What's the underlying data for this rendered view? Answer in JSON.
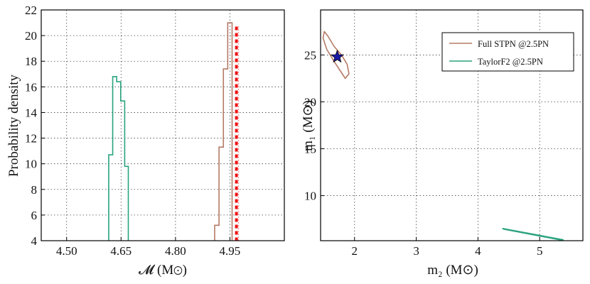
{
  "colors": {
    "full_stpn": "#b57a66",
    "taylorf2": "#2aa37f",
    "truth": "#ee1111",
    "star": "#1a1aa8"
  },
  "chart_data": [
    {
      "type": "histogram",
      "xlabel": "𝓜 (M⊙)",
      "ylabel": "Probability density",
      "xlim": [
        4.43,
        5.1
      ],
      "ylim": [
        4,
        22
      ],
      "xticks": [
        4.5,
        4.65,
        4.8,
        4.95
      ],
      "xtick_labels": [
        "4.50",
        "4.65",
        "4.80",
        "4.95"
      ],
      "yticks": [
        4,
        6,
        8,
        10,
        12,
        14,
        16,
        18,
        20,
        22
      ],
      "ytick_labels": [
        "4",
        "6",
        "8",
        "10",
        "12",
        "14",
        "16",
        "18",
        "20",
        "22"
      ],
      "grid": true,
      "series": [
        {
          "key": "taylorf2",
          "edges": [
            4.616,
            4.627,
            4.638,
            4.649,
            4.66,
            4.67
          ],
          "values": [
            10.7,
            16.8,
            16.4,
            14.9,
            9.8
          ]
        },
        {
          "key": "full_stpn",
          "edges": [
            4.908,
            4.92,
            4.932,
            4.944,
            4.956
          ],
          "values": [
            5.2,
            11.3,
            17.4,
            21.0
          ]
        }
      ],
      "truth_line": {
        "x": 4.968
      }
    },
    {
      "type": "contour",
      "xlabel": "m₂ (M⊙)",
      "ylabel": "m₁ (M⊙)",
      "xlim": [
        1.45,
        5.7
      ],
      "ylim": [
        5.2,
        29.8
      ],
      "xticks": [
        2,
        3,
        4,
        5
      ],
      "xtick_labels": [
        "2",
        "3",
        "4",
        "5"
      ],
      "yticks": [
        10,
        15,
        20,
        25
      ],
      "ytick_labels": [
        "10",
        "15",
        "20",
        "25"
      ],
      "grid": true,
      "legend": {
        "position": "top-right",
        "entries": [
          "Full STPN @2.5PN",
          "TaylorF2 @2.5PN"
        ]
      },
      "contours": [
        {
          "key": "full_stpn",
          "points": [
            [
              1.51,
              27.5
            ],
            [
              1.57,
              27.0
            ],
            [
              1.67,
              25.9
            ],
            [
              1.79,
              25.0
            ],
            [
              1.88,
              24.0
            ],
            [
              1.91,
              23.0
            ],
            [
              1.85,
              22.5
            ],
            [
              1.77,
              23.3
            ],
            [
              1.66,
              24.4
            ],
            [
              1.55,
              25.6
            ],
            [
              1.49,
              26.8
            ],
            [
              1.51,
              27.5
            ]
          ]
        },
        {
          "key": "taylorf2",
          "points": [
            [
              4.4,
              6.5
            ],
            [
              5.38,
              5.3
            ],
            [
              5.36,
              5.25
            ],
            [
              4.42,
              6.42
            ],
            [
              4.4,
              6.5
            ]
          ]
        }
      ],
      "truth_point": {
        "x": 1.72,
        "y": 24.8
      }
    }
  ]
}
